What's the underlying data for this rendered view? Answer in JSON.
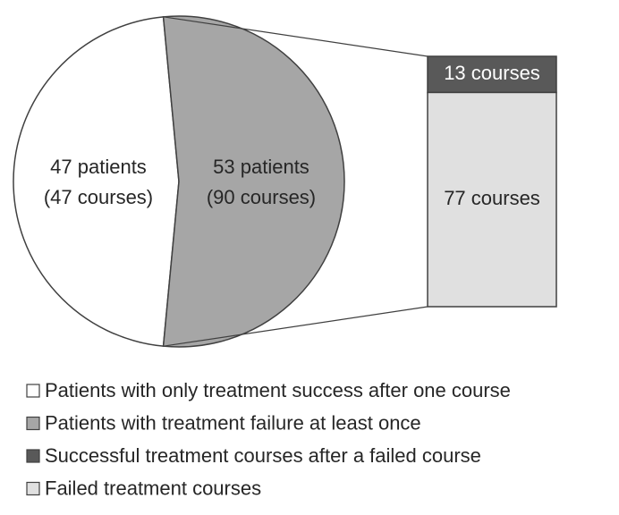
{
  "chart_data": {
    "type": "pie-of-bar",
    "pie": {
      "categories": [
        "Patients with only treatment success after one course",
        "Patients with treatment failure at least once"
      ],
      "values": [
        47,
        53
      ],
      "value_labels": [
        "47 patients",
        "53 patients"
      ],
      "course_labels": [
        "(47 courses)",
        "(90 courses)"
      ],
      "colors": [
        "#ffffff",
        "#a6a6a6"
      ]
    },
    "bar": {
      "categories": [
        "Successful treatment courses after a failed course",
        "Failed treatment courses"
      ],
      "values": [
        13,
        77
      ],
      "value_labels": [
        "13 courses",
        "77 courses"
      ],
      "colors": [
        "#595959",
        "#e0e0e0"
      ]
    }
  }
}
